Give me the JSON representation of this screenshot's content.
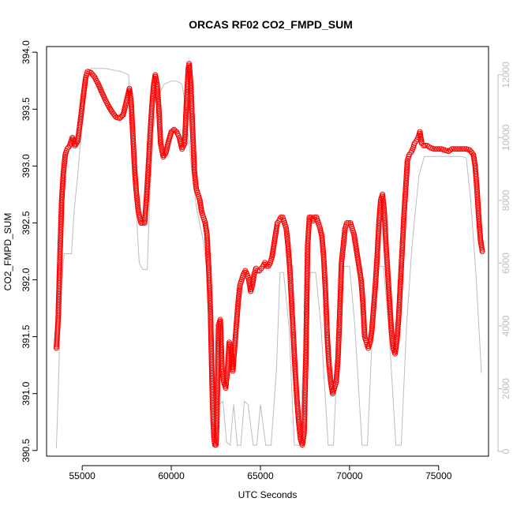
{
  "chart_data": {
    "type": "scatter",
    "title": "ORCAS RF02 CO2_FMPD_SUM",
    "xlabel": "UTC Seconds",
    "ylabel": "CO2_FMPD_SUM",
    "xlim": [
      53000,
      77800
    ],
    "ylim": [
      390.45,
      394.05
    ],
    "x_ticks": [
      55000,
      60000,
      65000,
      70000,
      75000
    ],
    "y_ticks": [
      390.5,
      391.0,
      391.5,
      392.0,
      392.5,
      393.0,
      393.5,
      394.0
    ],
    "y_tick_labels": [
      "390.5",
      "391.0",
      "391.5",
      "392.0",
      "392.5",
      "393.0",
      "393.5",
      "394.0"
    ],
    "y2_lim": [
      -150,
      12900
    ],
    "y2_ticks": [
      0,
      2000,
      4000,
      6000,
      8000,
      10000,
      12000
    ],
    "grid": false,
    "legend": "none",
    "colors": {
      "co2": "#ff0000",
      "altitude": "#bdbdbd",
      "axis": "#000000"
    },
    "series": [
      {
        "marker": "open-circle",
        "axis": "left",
        "points": [
          [
            53550,
            391.4
          ],
          [
            53650,
            391.65
          ],
          [
            53750,
            392.2
          ],
          [
            53850,
            392.7
          ],
          [
            53950,
            392.95
          ],
          [
            54050,
            393.1
          ],
          [
            54150,
            393.15
          ],
          [
            54300,
            393.18
          ],
          [
            54450,
            393.25
          ],
          [
            54600,
            393.18
          ],
          [
            54750,
            393.22
          ],
          [
            54900,
            393.4
          ],
          [
            55050,
            393.6
          ],
          [
            55200,
            393.78
          ],
          [
            55300,
            393.83
          ],
          [
            55500,
            393.82
          ],
          [
            55700,
            393.78
          ],
          [
            55900,
            393.72
          ],
          [
            56100,
            393.65
          ],
          [
            56300,
            393.58
          ],
          [
            56500,
            393.52
          ],
          [
            56700,
            393.47
          ],
          [
            56900,
            393.43
          ],
          [
            57100,
            393.42
          ],
          [
            57300,
            393.45
          ],
          [
            57500,
            393.58
          ],
          [
            57650,
            393.68
          ],
          [
            57750,
            393.55
          ],
          [
            57850,
            393.25
          ],
          [
            57950,
            392.95
          ],
          [
            58050,
            392.75
          ],
          [
            58150,
            392.6
          ],
          [
            58300,
            392.5
          ],
          [
            58500,
            392.5
          ],
          [
            58600,
            392.7
          ],
          [
            58700,
            392.95
          ],
          [
            58800,
            393.25
          ],
          [
            58900,
            393.5
          ],
          [
            59000,
            393.7
          ],
          [
            59100,
            393.8
          ],
          [
            59200,
            393.72
          ],
          [
            59300,
            393.5
          ],
          [
            59400,
            393.2
          ],
          [
            59550,
            393.08
          ],
          [
            59700,
            393.12
          ],
          [
            59850,
            393.22
          ],
          [
            60000,
            393.3
          ],
          [
            60150,
            393.32
          ],
          [
            60300,
            393.3
          ],
          [
            60450,
            393.25
          ],
          [
            60600,
            393.15
          ],
          [
            60750,
            393.2
          ],
          [
            60850,
            393.55
          ],
          [
            60950,
            393.85
          ],
          [
            61000,
            393.9
          ],
          [
            61100,
            393.7
          ],
          [
            61200,
            393.3
          ],
          [
            61300,
            392.95
          ],
          [
            61400,
            392.8
          ],
          [
            61500,
            392.75
          ],
          [
            61600,
            392.7
          ],
          [
            61700,
            392.6
          ],
          [
            61800,
            392.55
          ],
          [
            61900,
            392.5
          ],
          [
            62000,
            392.4
          ],
          [
            62100,
            392.1
          ],
          [
            62200,
            391.7
          ],
          [
            62250,
            391.35
          ],
          [
            62300,
            391.0
          ],
          [
            62350,
            390.75
          ],
          [
            62400,
            390.6
          ],
          [
            62450,
            390.55
          ],
          [
            62500,
            390.55
          ],
          [
            62550,
            390.7
          ],
          [
            62650,
            391.6
          ],
          [
            62750,
            391.65
          ],
          [
            62850,
            391.2
          ],
          [
            62950,
            391.1
          ],
          [
            63050,
            391.05
          ],
          [
            63150,
            391.2
          ],
          [
            63250,
            391.45
          ],
          [
            63350,
            391.4
          ],
          [
            63450,
            391.2
          ],
          [
            63550,
            391.4
          ],
          [
            63650,
            391.6
          ],
          [
            63750,
            391.8
          ],
          [
            63850,
            391.95
          ],
          [
            63950,
            392.0
          ],
          [
            64050,
            392.05
          ],
          [
            64150,
            392.08
          ],
          [
            64250,
            392.05
          ],
          [
            64350,
            392.0
          ],
          [
            64450,
            391.9
          ],
          [
            64550,
            391.95
          ],
          [
            64650,
            392.05
          ],
          [
            64750,
            392.1
          ],
          [
            64850,
            392.08
          ],
          [
            64950,
            392.08
          ],
          [
            65050,
            392.1
          ],
          [
            65150,
            392.12
          ],
          [
            65250,
            392.15
          ],
          [
            65350,
            392.12
          ],
          [
            65450,
            392.12
          ],
          [
            65550,
            392.15
          ],
          [
            65650,
            392.2
          ],
          [
            65750,
            392.3
          ],
          [
            65850,
            392.4
          ],
          [
            65950,
            392.5
          ],
          [
            66050,
            392.52
          ],
          [
            66150,
            392.55
          ],
          [
            66250,
            392.55
          ],
          [
            66350,
            392.5
          ],
          [
            66450,
            392.45
          ],
          [
            66550,
            392.3
          ],
          [
            66650,
            392.1
          ],
          [
            66750,
            391.8
          ],
          [
            66850,
            391.5
          ],
          [
            66950,
            391.2
          ],
          [
            67050,
            390.95
          ],
          [
            67150,
            390.75
          ],
          [
            67250,
            390.6
          ],
          [
            67350,
            390.55
          ],
          [
            67450,
            390.65
          ],
          [
            67550,
            391.3
          ],
          [
            67650,
            392.3
          ],
          [
            67750,
            392.55
          ],
          [
            67850,
            392.55
          ],
          [
            67950,
            392.52
          ],
          [
            68050,
            392.55
          ],
          [
            68150,
            392.55
          ],
          [
            68250,
            392.5
          ],
          [
            68350,
            392.45
          ],
          [
            68450,
            392.38
          ],
          [
            68550,
            392.2
          ],
          [
            68650,
            391.9
          ],
          [
            68750,
            391.5
          ],
          [
            68850,
            391.25
          ],
          [
            68950,
            391.1
          ],
          [
            69050,
            391.0
          ],
          [
            69150,
            391.05
          ],
          [
            69250,
            391.1
          ],
          [
            69350,
            391.3
          ],
          [
            69450,
            391.7
          ],
          [
            69550,
            392.15
          ],
          [
            69650,
            392.3
          ],
          [
            69750,
            392.45
          ],
          [
            69850,
            392.5
          ],
          [
            69950,
            392.5
          ],
          [
            70050,
            392.5
          ],
          [
            70150,
            392.45
          ],
          [
            70250,
            392.4
          ],
          [
            70350,
            392.3
          ],
          [
            70450,
            392.2
          ],
          [
            70550,
            392.1
          ],
          [
            70650,
            392.0
          ],
          [
            70750,
            391.8
          ],
          [
            70850,
            391.5
          ],
          [
            70950,
            391.45
          ],
          [
            71050,
            391.4
          ],
          [
            71150,
            391.45
          ],
          [
            71250,
            391.55
          ],
          [
            71350,
            391.75
          ],
          [
            71450,
            391.95
          ],
          [
            71550,
            392.2
          ],
          [
            71650,
            392.5
          ],
          [
            71750,
            392.7
          ],
          [
            71850,
            392.75
          ],
          [
            71950,
            392.6
          ],
          [
            72050,
            392.3
          ],
          [
            72150,
            392.05
          ],
          [
            72250,
            391.8
          ],
          [
            72350,
            391.55
          ],
          [
            72450,
            391.4
          ],
          [
            72550,
            391.35
          ],
          [
            72650,
            391.45
          ],
          [
            72750,
            391.65
          ],
          [
            72850,
            391.95
          ],
          [
            72950,
            392.25
          ],
          [
            73050,
            392.55
          ],
          [
            73150,
            392.8
          ],
          [
            73250,
            393.05
          ],
          [
            73350,
            393.1
          ],
          [
            73450,
            393.12
          ],
          [
            73550,
            393.15
          ],
          [
            73650,
            393.2
          ],
          [
            73750,
            393.22
          ],
          [
            73850,
            393.25
          ],
          [
            73950,
            393.3
          ],
          [
            74050,
            393.2
          ],
          [
            74150,
            393.18
          ],
          [
            74350,
            393.18
          ],
          [
            74550,
            393.16
          ],
          [
            74750,
            393.15
          ],
          [
            74950,
            393.15
          ],
          [
            75150,
            393.15
          ],
          [
            75350,
            393.14
          ],
          [
            75550,
            393.13
          ],
          [
            75750,
            393.15
          ],
          [
            75950,
            393.15
          ],
          [
            76150,
            393.15
          ],
          [
            76350,
            393.15
          ],
          [
            76550,
            393.15
          ],
          [
            76750,
            393.14
          ],
          [
            76950,
            393.1
          ],
          [
            77050,
            393.0
          ],
          [
            77150,
            392.8
          ],
          [
            77250,
            392.55
          ],
          [
            77350,
            392.35
          ],
          [
            77450,
            392.25
          ]
        ]
      },
      {
        "marker": "line",
        "axis": "right",
        "points": [
          [
            53550,
            100
          ],
          [
            53650,
            1800
          ],
          [
            53750,
            3800
          ],
          [
            53850,
            5200
          ],
          [
            53950,
            6100
          ],
          [
            54000,
            6300
          ],
          [
            54400,
            6300
          ],
          [
            54550,
            7700
          ],
          [
            54750,
            8800
          ],
          [
            54950,
            10200
          ],
          [
            55200,
            11800
          ],
          [
            55500,
            12200
          ],
          [
            56300,
            12200
          ],
          [
            57200,
            12100
          ],
          [
            57600,
            12000
          ],
          [
            57800,
            10200
          ],
          [
            58000,
            8000
          ],
          [
            58200,
            6000
          ],
          [
            58400,
            5800
          ],
          [
            58650,
            5800
          ],
          [
            58800,
            8200
          ],
          [
            59000,
            10300
          ],
          [
            59250,
            11300
          ],
          [
            59600,
            11700
          ],
          [
            60000,
            11800
          ],
          [
            60300,
            11800
          ],
          [
            60600,
            11700
          ],
          [
            60800,
            11000
          ],
          [
            61100,
            9200
          ],
          [
            61400,
            7800
          ],
          [
            61800,
            6700
          ],
          [
            62100,
            5200
          ],
          [
            62300,
            3200
          ],
          [
            62500,
            1600
          ],
          [
            62700,
            1500
          ],
          [
            62900,
            1600
          ],
          [
            63100,
            300
          ],
          [
            63300,
            200
          ],
          [
            63500,
            1500
          ],
          [
            63700,
            200
          ],
          [
            63900,
            200
          ],
          [
            64100,
            1600
          ],
          [
            64300,
            1500
          ],
          [
            64600,
            200
          ],
          [
            64800,
            200
          ],
          [
            65000,
            1500
          ],
          [
            65300,
            200
          ],
          [
            65600,
            200
          ],
          [
            65900,
            2600
          ],
          [
            66100,
            5700
          ],
          [
            66300,
            5700
          ],
          [
            66600,
            4000
          ],
          [
            66900,
            200
          ],
          [
            67200,
            200
          ],
          [
            67500,
            4000
          ],
          [
            67800,
            5700
          ],
          [
            68100,
            5700
          ],
          [
            68400,
            4000
          ],
          [
            68800,
            200
          ],
          [
            69100,
            200
          ],
          [
            69400,
            4000
          ],
          [
            69700,
            5900
          ],
          [
            70000,
            5900
          ],
          [
            70300,
            4000
          ],
          [
            70700,
            200
          ],
          [
            71000,
            200
          ],
          [
            71300,
            4000
          ],
          [
            71600,
            5900
          ],
          [
            71900,
            5900
          ],
          [
            72200,
            4000
          ],
          [
            72600,
            200
          ],
          [
            72900,
            200
          ],
          [
            73200,
            4000
          ],
          [
            73500,
            6500
          ],
          [
            73700,
            7700
          ],
          [
            73900,
            8800
          ],
          [
            74200,
            9400
          ],
          [
            75000,
            9400
          ],
          [
            75800,
            9400
          ],
          [
            76300,
            9400
          ],
          [
            76550,
            9350
          ],
          [
            76800,
            8000
          ],
          [
            77100,
            5600
          ],
          [
            77400,
            2500
          ]
        ]
      }
    ]
  }
}
